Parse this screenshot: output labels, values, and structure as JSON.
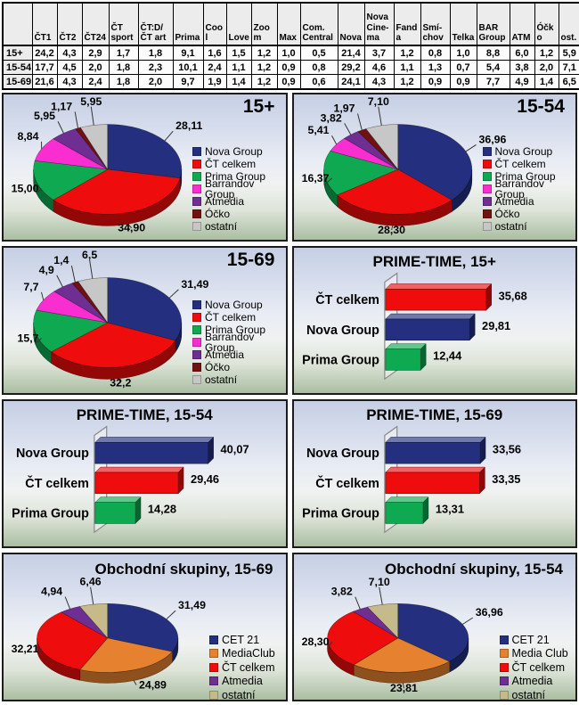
{
  "colors": {
    "navy": "#24307F",
    "red": "#EE0C0C",
    "green": "#0EA950",
    "magenta": "#FA2ED0",
    "purple": "#6F2E92",
    "maroon": "#721111",
    "gray": "#C7C7C7",
    "orange": "#E5812F",
    "tan": "#C6BA8B",
    "panel_border": "#1C1C1C",
    "leader_line": "#333333"
  },
  "table": {
    "col_headers": [
      "",
      "ČT1",
      "ČT2",
      "ČT24",
      "ČT sport",
      "ČT:D/ČT art",
      "Prima",
      "Cool",
      "Love",
      "Zoom",
      "Max",
      "Com. Central",
      "Nova",
      "Nova Cine-ma",
      "Fanda",
      "Smí-chov",
      "Telka",
      "BAR Group",
      "ATM",
      "Óčko",
      "ost."
    ],
    "rows": [
      {
        "label": "15+",
        "values": [
          "24,2",
          "4,3",
          "2,9",
          "1,7",
          "1,8",
          "9,1",
          "1,6",
          "1,5",
          "1,2",
          "1,0",
          "0,5",
          "21,4",
          "3,7",
          "1,2",
          "0,8",
          "1,0",
          "8,8",
          "6,0",
          "1,2",
          "5,9"
        ]
      },
      {
        "label": "15-54",
        "values": [
          "17,7",
          "4,5",
          "2,0",
          "1,8",
          "2,3",
          "10,1",
          "2,4",
          "1,1",
          "1,2",
          "0,9",
          "0,8",
          "29,2",
          "4,6",
          "1,1",
          "1,3",
          "0,7",
          "5,4",
          "3,8",
          "2,0",
          "7,1"
        ]
      },
      {
        "label": "15-69",
        "values": [
          "21,6",
          "4,3",
          "2,4",
          "1,8",
          "2,0",
          "9,7",
          "1,9",
          "1,4",
          "1,2",
          "0,9",
          "0,6",
          "24,1",
          "4,3",
          "1,2",
          "0,9",
          "0,9",
          "7,7",
          "4,9",
          "1,4",
          "6,5"
        ]
      }
    ]
  },
  "chart_data": [
    {
      "type": "pie",
      "title": "15+",
      "legend_position": "right",
      "slices": [
        {
          "label": "Nova Group",
          "value": 28.11,
          "display": "28,11",
          "color": "navy"
        },
        {
          "label": "ČT celkem",
          "value": 34.9,
          "display": "34,90",
          "color": "red"
        },
        {
          "label": "Prima Group",
          "value": 15.0,
          "display": "15,00",
          "color": "green"
        },
        {
          "label": "Barrandov Group",
          "value": 8.84,
          "display": "8,84",
          "color": "magenta"
        },
        {
          "label": "Atmedia",
          "value": 5.95,
          "display": "5,95",
          "color": "purple"
        },
        {
          "label": "Óčko",
          "value": 1.17,
          "display": "1,17",
          "color": "maroon"
        },
        {
          "label": "ostatní",
          "value": 5.95,
          "display": "5,95",
          "color": "gray"
        }
      ]
    },
    {
      "type": "pie",
      "title": "15-54",
      "legend_position": "right",
      "slices": [
        {
          "label": "Nova Group",
          "value": 36.96,
          "display": "36,96",
          "color": "navy"
        },
        {
          "label": "ČT celkem",
          "value": 28.3,
          "display": "28,30",
          "color": "red"
        },
        {
          "label": "Prima Group",
          "value": 16.37,
          "display": "16,37",
          "color": "green"
        },
        {
          "label": "Barrandov Group",
          "value": 5.41,
          "display": "5,41",
          "color": "magenta"
        },
        {
          "label": "Atmedia",
          "value": 3.82,
          "display": "3,82",
          "color": "purple"
        },
        {
          "label": "Óčko",
          "value": 1.97,
          "display": "1,97",
          "color": "maroon"
        },
        {
          "label": "ostatní",
          "value": 7.1,
          "display": "7,10",
          "color": "gray"
        }
      ]
    },
    {
      "type": "pie",
      "title": "15-69",
      "legend_position": "right",
      "slices": [
        {
          "label": "Nova Group",
          "value": 31.49,
          "display": "31,49",
          "color": "navy"
        },
        {
          "label": "ČT celkem",
          "value": 32.2,
          "display": "32,2",
          "color": "red"
        },
        {
          "label": "Prima Group",
          "value": 15.7,
          "display": "15,7",
          "color": "green"
        },
        {
          "label": "Barrandov Group",
          "value": 7.7,
          "display": "7,7",
          "color": "magenta"
        },
        {
          "label": "Atmedia",
          "value": 4.9,
          "display": "4,9",
          "color": "purple"
        },
        {
          "label": "Óčko",
          "value": 1.4,
          "display": "1,4",
          "color": "maroon"
        },
        {
          "label": "ostatní",
          "value": 6.5,
          "display": "6,5",
          "color": "gray"
        }
      ]
    },
    {
      "type": "bar",
      "title": "PRIME-TIME, 15+",
      "xlim": [
        0,
        50
      ],
      "grid": false,
      "legend_position": "none",
      "categories": [
        "ČT celkem",
        "Nova Group",
        "Prima Group"
      ],
      "values": [
        35.68,
        29.81,
        12.44
      ],
      "display_values": [
        "35,68",
        "29,81",
        "12,44"
      ],
      "bar_colors": [
        "red",
        "navy",
        "green"
      ]
    },
    {
      "type": "bar",
      "title": "PRIME-TIME, 15-54",
      "xlim": [
        0,
        50
      ],
      "grid": false,
      "legend_position": "none",
      "categories": [
        "Nova Group",
        "ČT celkem",
        "Prima Group"
      ],
      "values": [
        40.07,
        29.46,
        14.28
      ],
      "display_values": [
        "40,07",
        "29,46",
        "14,28"
      ],
      "bar_colors": [
        "navy",
        "red",
        "green"
      ]
    },
    {
      "type": "bar",
      "title": "PRIME-TIME, 15-69",
      "xlim": [
        0,
        50
      ],
      "grid": false,
      "legend_position": "none",
      "categories": [
        "Nova Group",
        "ČT celkem",
        "Prima Group"
      ],
      "values": [
        33.56,
        33.35,
        13.31
      ],
      "display_values": [
        "33,56",
        "33,35",
        "13,31"
      ],
      "bar_colors": [
        "navy",
        "red",
        "green"
      ]
    },
    {
      "type": "pie",
      "title": "Obchodní skupiny, 15-69",
      "legend_position": "right",
      "slices": [
        {
          "label": "CET 21",
          "value": 31.49,
          "display": "31,49",
          "color": "navy"
        },
        {
          "label": "MediaClub",
          "value": 24.89,
          "display": "24,89",
          "color": "orange"
        },
        {
          "label": "ČT celkem",
          "value": 32.21,
          "display": "32,21",
          "color": "red"
        },
        {
          "label": "Atmedia",
          "value": 4.94,
          "display": "4,94",
          "color": "purple"
        },
        {
          "label": "ostatní",
          "value": 6.46,
          "display": "6,46",
          "color": "tan"
        }
      ]
    },
    {
      "type": "pie",
      "title": "Obchodní skupiny, 15-54",
      "legend_position": "right",
      "slices": [
        {
          "label": "CET 21",
          "value": 36.96,
          "display": "36,96",
          "color": "navy"
        },
        {
          "label": "Media Club",
          "value": 23.81,
          "display": "23,81",
          "color": "orange"
        },
        {
          "label": "ČT celkem",
          "value": 28.3,
          "display": "28,30",
          "color": "red"
        },
        {
          "label": "Atmedia",
          "value": 3.82,
          "display": "3,82",
          "color": "purple"
        },
        {
          "label": "ostatní",
          "value": 7.1,
          "display": "7,10",
          "color": "tan"
        }
      ]
    }
  ]
}
